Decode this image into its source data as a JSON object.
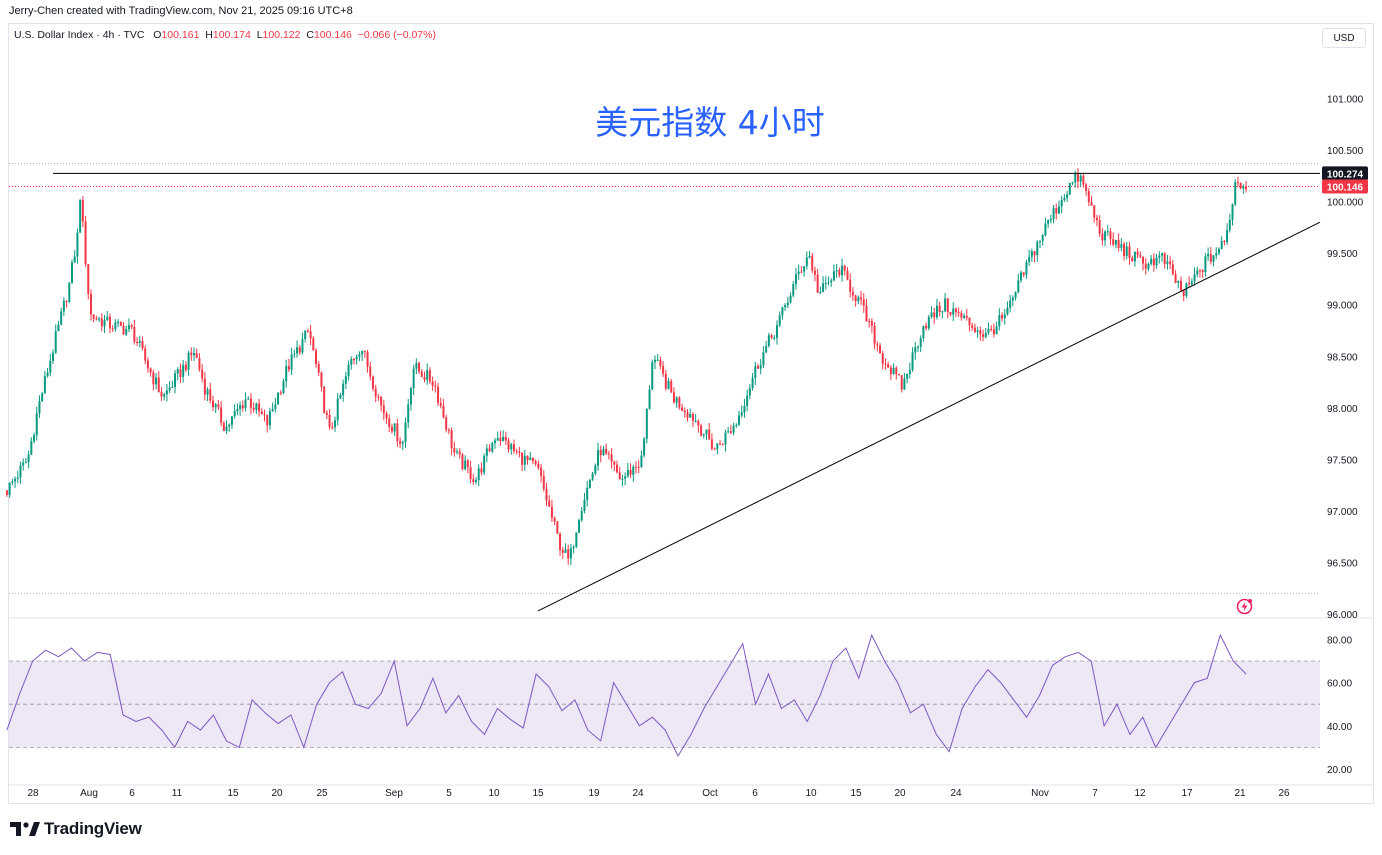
{
  "credit": "Jerry-Chen created with TradingView.com, Nov 21, 2025 09:16 UTC+8",
  "legend": {
    "symbol": "U.S. Dollar Index · 4h · TVC",
    "o_label": "O",
    "o": "100.161",
    "h_label": "H",
    "h": "100.174",
    "l_label": "L",
    "l": "100.122",
    "c_label": "C",
    "c": "100.146",
    "change": "−0.066 (−0.07%)"
  },
  "currency": "USD",
  "brand": "TradingView",
  "colors": {
    "up": "#089981",
    "down": "#f23645",
    "title": "#2962ff",
    "rsi": "#7e57c2",
    "rsi_band": "#ede7f6"
  },
  "chart_data": [
    {
      "type": "candlestick",
      "title": "美元指数 4小时",
      "ylim": [
        96.0,
        101.45
      ],
      "y_ticks": [
        "96.000",
        "96.500",
        "97.000",
        "97.500",
        "98.000",
        "98.500",
        "99.000",
        "99.500",
        "100.000",
        "100.500",
        "101.000"
      ],
      "x_ticks": [
        "28",
        "Aug",
        "6",
        "11",
        "15",
        "20",
        "25",
        "Sep",
        "5",
        "10",
        "15",
        "19",
        "24",
        "Oct",
        "6",
        "10",
        "15",
        "20",
        "24",
        "Nov",
        "7",
        "12",
        "17",
        "21",
        "26"
      ],
      "last_price": "100.146",
      "resistance_level": "100.274",
      "resistance_line": [
        100.274,
        100.274
      ],
      "support_trendline": [
        [
          96.03,
          "Sep 17"
        ],
        [
          99.8,
          "Nov 25"
        ]
      ],
      "high_low_dotted": [
        100.37,
        96.2
      ],
      "close_path": [
        [
          "Jul 25",
          97.2
        ],
        [
          "Jul 27",
          97.5
        ],
        [
          "Jul 28",
          98.0
        ],
        [
          "Jul 30",
          98.8
        ],
        [
          "Jul 31",
          99.2
        ],
        [
          "Aug 1",
          99.8
        ],
        [
          "Aug 1",
          100.1
        ],
        [
          "Aug 2",
          98.9
        ],
        [
          "Aug 4",
          98.8
        ],
        [
          "Aug 6",
          98.75
        ],
        [
          "Aug 8",
          98.3
        ],
        [
          "Aug 9",
          98.1
        ],
        [
          "Aug 12",
          98.55
        ],
        [
          "Aug 13",
          98.2
        ],
        [
          "Aug 15",
          97.8
        ],
        [
          "Aug 17",
          98.1
        ],
        [
          "Aug 19",
          97.85
        ],
        [
          "Aug 21",
          98.4
        ],
        [
          "Aug 23",
          98.75
        ],
        [
          "Aug 25",
          97.75
        ],
        [
          "Aug 27",
          98.45
        ],
        [
          "Aug 28",
          98.6
        ],
        [
          "Aug 30",
          98.0
        ],
        [
          "Sep 1",
          97.65
        ],
        [
          "Sep 2",
          98.4
        ],
        [
          "Sep 4",
          98.25
        ],
        [
          "Sep 6",
          97.55
        ],
        [
          "Sep 8",
          97.3
        ],
        [
          "Sep 10",
          97.75
        ],
        [
          "Sep 12",
          97.55
        ],
        [
          "Sep 14",
          97.4
        ],
        [
          "Sep 16",
          96.7
        ],
        [
          "Sep 17",
          96.5
        ],
        [
          "Sep 18",
          97.0
        ],
        [
          "Sep 20",
          97.6
        ],
        [
          "Sep 22",
          97.3
        ],
        [
          "Sep 24",
          97.5
        ],
        [
          "Sep 25",
          98.5
        ],
        [
          "Sep 27",
          98.1
        ],
        [
          "Sep 29",
          97.9
        ],
        [
          "Oct 1",
          97.6
        ],
        [
          "Oct 3",
          97.85
        ],
        [
          "Oct 5",
          98.4
        ],
        [
          "Oct 7",
          98.8
        ],
        [
          "Oct 9",
          99.3
        ],
        [
          "Oct 10",
          99.5
        ],
        [
          "Oct 11",
          99.1
        ],
        [
          "Oct 13",
          99.35
        ],
        [
          "Oct 15",
          99.0
        ],
        [
          "Oct 17",
          98.5
        ],
        [
          "Oct 19",
          98.2
        ],
        [
          "Oct 21",
          98.8
        ],
        [
          "Oct 23",
          99.0
        ],
        [
          "Oct 25",
          98.85
        ],
        [
          "Oct 27",
          98.7
        ],
        [
          "Oct 29",
          98.9
        ],
        [
          "Oct 31",
          99.4
        ],
        [
          "Nov 2",
          99.8
        ],
        [
          "Nov 4",
          100.15
        ],
        [
          "Nov 5",
          100.25
        ],
        [
          "Nov 7",
          99.7
        ],
        [
          "Nov 9",
          99.55
        ],
        [
          "Nov 11",
          99.4
        ],
        [
          "Nov 13",
          99.45
        ],
        [
          "Nov 15",
          99.1
        ],
        [
          "Nov 17",
          99.4
        ],
        [
          "Nov 19",
          99.6
        ],
        [
          "Nov 20",
          100.2
        ],
        [
          "Nov 21",
          100.146
        ]
      ]
    },
    {
      "type": "line",
      "name": "RSI",
      "ylim": [
        15,
        86
      ],
      "y_ticks": [
        "20.00",
        "40.00",
        "60.00",
        "80.00"
      ],
      "band": [
        30,
        70
      ],
      "midline": 50,
      "values": [
        38,
        55,
        70,
        75,
        72,
        76,
        70,
        74,
        73,
        45,
        42,
        44,
        38,
        30,
        42,
        38,
        45,
        33,
        30,
        52,
        46,
        41,
        45,
        30,
        50,
        60,
        65,
        50,
        48,
        55,
        70,
        40,
        48,
        62,
        46,
        54,
        42,
        36,
        48,
        43,
        39,
        64,
        58,
        47,
        52,
        38,
        33,
        60,
        50,
        40,
        44,
        38,
        26,
        36,
        48,
        58,
        68,
        78,
        50,
        64,
        48,
        52,
        42,
        54,
        70,
        76,
        62,
        82,
        70,
        60,
        46,
        50,
        36,
        28,
        48,
        58,
        66,
        60,
        52,
        44,
        54,
        68,
        72,
        74,
        70,
        40,
        50,
        36,
        44,
        30,
        40,
        50,
        60,
        62,
        82,
        70,
        64
      ]
    }
  ]
}
